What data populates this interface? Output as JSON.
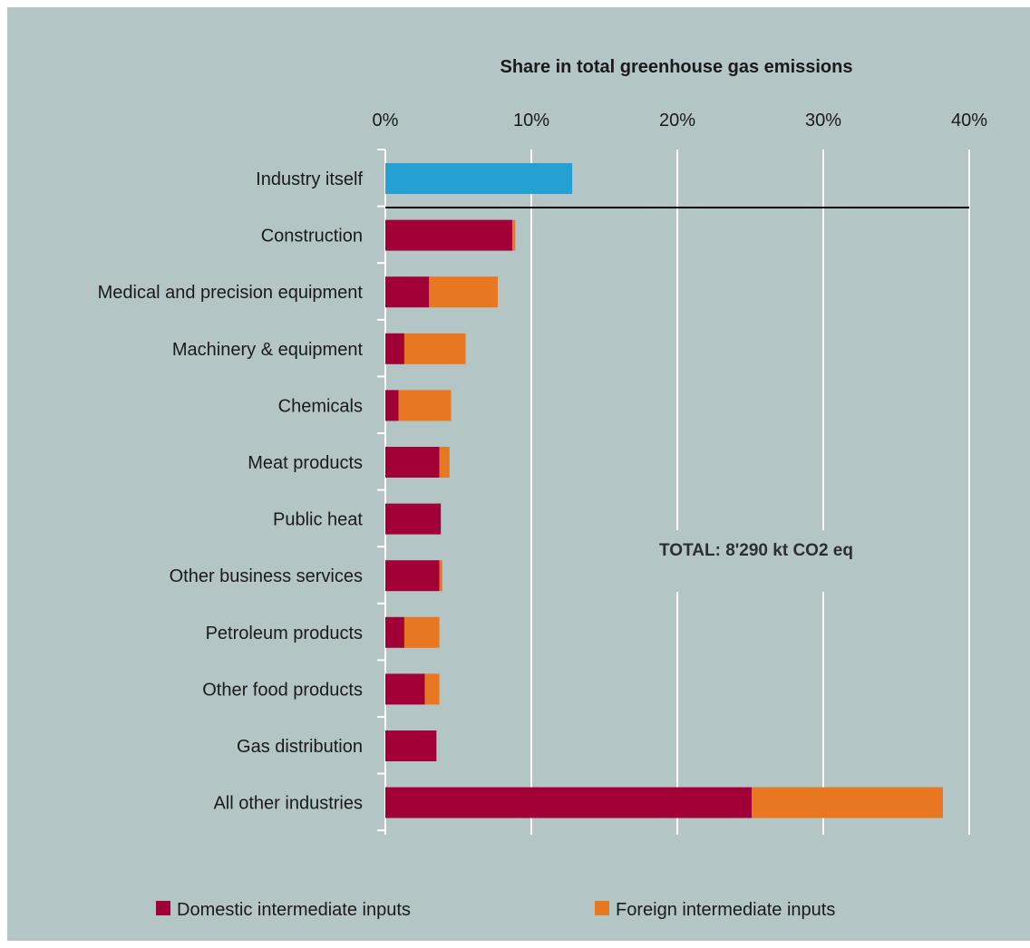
{
  "chart_data": {
    "type": "bar",
    "orientation": "horizontal",
    "stacked": true,
    "title": "Share in total greenhouse gas emissions",
    "annotation": "TOTAL: 8'290 kt CO2 eq",
    "x_ticks": [
      "0%",
      "10%",
      "20%",
      "30%",
      "40%"
    ],
    "xlim": [
      0,
      40
    ],
    "grid": true,
    "legend_position": "bottom",
    "categories": [
      "Industry itself",
      "Construction",
      "Medical and precision equipment",
      "Machinery & equipment",
      "Chemicals",
      "Meat products",
      "Public heat",
      "Other business services",
      "Petroleum products",
      "Other food products",
      "Gas distribution",
      "All other industries"
    ],
    "self_value": 12.8,
    "series": [
      {
        "name": "Domestic intermediate inputs",
        "color": "#a10037",
        "values": [
          null,
          8.7,
          3.0,
          1.3,
          0.9,
          3.7,
          3.8,
          3.7,
          1.3,
          2.7,
          3.5,
          25.1
        ]
      },
      {
        "name": "Foreign intermediate inputs",
        "color": "#e87722",
        "values": [
          null,
          0.2,
          4.7,
          4.2,
          3.6,
          0.7,
          0.0,
          0.2,
          2.4,
          1.0,
          0.0,
          13.1
        ]
      }
    ],
    "self_color": "#25a0d3"
  }
}
